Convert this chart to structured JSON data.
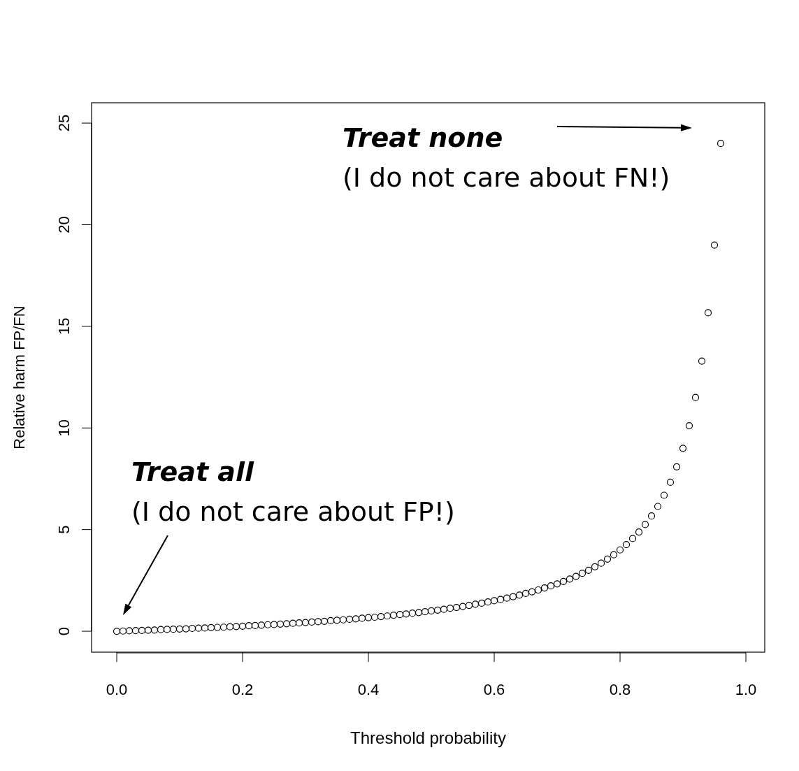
{
  "chart_data": {
    "type": "scatter",
    "xlabel": "Threshold probability",
    "ylabel": "Relative harm FP/FN",
    "x": [
      0,
      0.01,
      0.02,
      0.03,
      0.04,
      0.05,
      0.06,
      0.07,
      0.08,
      0.09,
      0.1,
      0.11,
      0.12,
      0.13,
      0.14,
      0.15,
      0.16,
      0.17,
      0.18,
      0.19,
      0.2,
      0.21,
      0.22,
      0.23,
      0.24,
      0.25,
      0.26,
      0.27,
      0.28,
      0.29,
      0.3,
      0.31,
      0.32,
      0.33,
      0.34,
      0.35,
      0.36,
      0.37,
      0.38,
      0.39,
      0.4,
      0.41,
      0.42,
      0.43,
      0.44,
      0.45,
      0.46,
      0.47,
      0.48,
      0.49,
      0.5,
      0.51,
      0.52,
      0.53,
      0.54,
      0.55,
      0.56,
      0.57,
      0.58,
      0.59,
      0.6,
      0.61,
      0.62,
      0.63,
      0.64,
      0.65,
      0.66,
      0.67,
      0.68,
      0.69,
      0.7,
      0.71,
      0.72,
      0.73,
      0.74,
      0.75,
      0.76,
      0.77,
      0.78,
      0.79,
      0.8,
      0.81,
      0.82,
      0.83,
      0.84,
      0.85,
      0.86,
      0.87,
      0.88,
      0.89,
      0.9,
      0.91,
      0.92,
      0.93,
      0.94,
      0.95,
      0.96
    ],
    "series": [
      {
        "color": "#000000",
        "values": [
          0,
          0.01,
          0.02,
          0.03,
          0.04,
          0.05,
          0.06,
          0.08,
          0.09,
          0.1,
          0.11,
          0.12,
          0.14,
          0.15,
          0.16,
          0.18,
          0.19,
          0.2,
          0.22,
          0.23,
          0.25,
          0.27,
          0.28,
          0.3,
          0.32,
          0.33,
          0.35,
          0.37,
          0.39,
          0.41,
          0.43,
          0.45,
          0.47,
          0.49,
          0.52,
          0.54,
          0.56,
          0.59,
          0.61,
          0.64,
          0.67,
          0.69,
          0.72,
          0.75,
          0.79,
          0.82,
          0.85,
          0.89,
          0.92,
          0.96,
          1,
          1.04,
          1.08,
          1.13,
          1.17,
          1.22,
          1.27,
          1.33,
          1.38,
          1.44,
          1.5,
          1.56,
          1.63,
          1.7,
          1.78,
          1.86,
          1.94,
          2.03,
          2.13,
          2.23,
          2.33,
          2.45,
          2.57,
          2.7,
          2.85,
          3,
          3.17,
          3.35,
          3.55,
          3.76,
          4,
          4.26,
          4.56,
          4.88,
          5.25,
          5.67,
          6.14,
          6.69,
          7.33,
          8.09,
          9,
          10.11,
          11.5,
          13.29,
          15.67,
          19,
          24
        ]
      }
    ],
    "xlim": [
      -0.04,
      1.03
    ],
    "ylim": [
      -1.03,
      26
    ],
    "xticks": [
      {
        "value": 0,
        "label": "0.0"
      },
      {
        "value": 0.2,
        "label": "0.2"
      },
      {
        "value": 0.4,
        "label": "0.4"
      },
      {
        "value": 0.6,
        "label": "0.6"
      },
      {
        "value": 0.8,
        "label": "0.8"
      },
      {
        "value": 1,
        "label": "1.0"
      }
    ],
    "yticks": [
      0,
      5,
      10,
      15,
      20,
      25
    ],
    "marker": "circle",
    "annotations": [
      "Treat none",
      "(I do not care about FN!)",
      "Treat all",
      "(I do not care about FP!)"
    ]
  }
}
